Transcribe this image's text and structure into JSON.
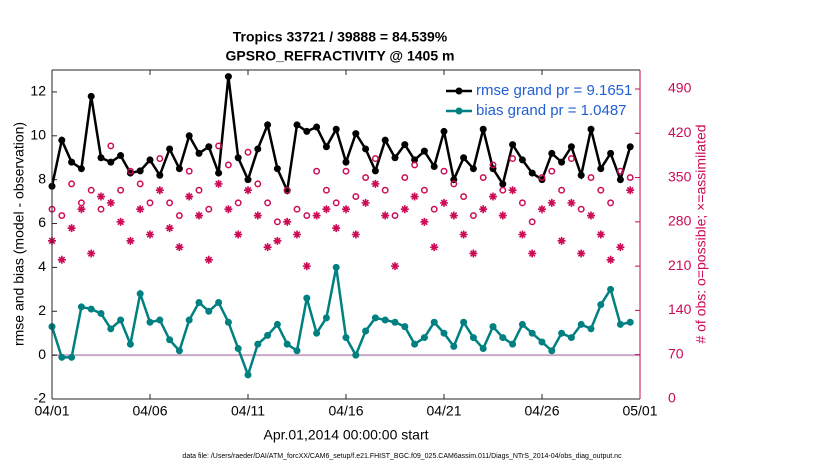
{
  "chart_data": {
    "type": "line",
    "title": "Tropics 33721 / 39888 = 84.539%",
    "subtitle": "GPSRO_REFRACTIVITY @ 1405 m",
    "x_label": "Apr.01,2014 00:00:00 start",
    "y_label": "rmse and bias (model - observation)",
    "y2_label": "# of obs: o=possible; ×=assimilated",
    "footnote": "data file: /Users/raeder/DAI/ATM_forcXX/CAM6_setup/f.e21.FHIST_BGC.f09_025.CAM6assim.011/Diags_NTrS_2014-04/obs_diag_output.nc",
    "x": [
      0,
      0.5,
      1,
      1.5,
      2,
      2.5,
      3,
      3.5,
      4,
      4.5,
      5,
      5.5,
      6,
      6.5,
      7,
      7.5,
      8,
      8.5,
      9,
      9.5,
      10,
      10.5,
      11,
      11.5,
      12,
      12.5,
      13,
      13.5,
      14,
      14.5,
      15,
      15.5,
      16,
      16.5,
      17,
      17.5,
      18,
      18.5,
      19,
      19.5,
      20,
      20.5,
      21,
      21.5,
      22,
      22.5,
      23,
      23.5,
      24,
      24.5,
      25,
      25.5,
      26,
      26.5,
      27,
      27.5,
      28,
      28.5,
      29,
      29.5
    ],
    "xlim": [
      0,
      30
    ],
    "xticks": [
      {
        "value": 0,
        "label": "04/01"
      },
      {
        "value": 5,
        "label": "04/06"
      },
      {
        "value": 10,
        "label": "04/11"
      },
      {
        "value": 15,
        "label": "04/16"
      },
      {
        "value": 20,
        "label": "04/21"
      },
      {
        "value": 25,
        "label": "04/26"
      },
      {
        "value": 30,
        "label": "05/01"
      }
    ],
    "ylim": [
      -2,
      13
    ],
    "yticks": [
      -2,
      0,
      2,
      4,
      6,
      8,
      10,
      12
    ],
    "y2lim": [
      0,
      520
    ],
    "y2ticks": [
      0,
      70,
      140,
      210,
      280,
      350,
      420,
      490
    ],
    "zero_line_color": "#c8a8c8",
    "y2_color": "#cc0a55",
    "series": [
      {
        "name": "rmse grand pr = 9.1651",
        "color": "#000000",
        "marker": "dot",
        "values": [
          7.7,
          9.8,
          8.8,
          8.5,
          11.8,
          9.0,
          8.8,
          9.1,
          8.3,
          8.4,
          8.9,
          8.2,
          9.4,
          8.5,
          10.0,
          9.2,
          9.5,
          8.3,
          12.7,
          9.0,
          8.0,
          9.4,
          10.5,
          8.5,
          7.5,
          10.5,
          10.2,
          10.4,
          9.5,
          10.3,
          8.8,
          10.1,
          9.4,
          8.4,
          9.8,
          9.0,
          9.6,
          8.9,
          9.3,
          8.6,
          10.2,
          8.0,
          9.0,
          8.5,
          10.3,
          8.5,
          7.8,
          9.6,
          8.9,
          8.3,
          8.0,
          9.2,
          8.8,
          9.5,
          8.2,
          10.3,
          8.5,
          9.2,
          8.0,
          9.5
        ]
      },
      {
        "name": "bias grand pr = 1.0487",
        "color": "#008080",
        "marker": "dot",
        "values": [
          1.3,
          -0.1,
          -0.1,
          2.2,
          2.1,
          1.9,
          1.2,
          1.6,
          0.5,
          2.8,
          1.5,
          1.6,
          0.7,
          0.2,
          1.6,
          2.4,
          2.0,
          2.4,
          1.5,
          0.3,
          -0.9,
          0.5,
          0.9,
          1.4,
          0.5,
          0.2,
          2.6,
          1.0,
          1.7,
          4.0,
          0.8,
          0.0,
          1.1,
          1.7,
          1.6,
          1.5,
          1.3,
          0.5,
          0.8,
          1.5,
          1.0,
          0.4,
          1.5,
          0.8,
          0.3,
          1.3,
          0.8,
          0.5,
          1.4,
          1.0,
          0.6,
          0.2,
          1.0,
          0.8,
          1.4,
          1.2,
          2.3,
          3.0,
          1.4,
          1.5
        ]
      },
      {
        "color": "#cc0a55",
        "marker": "circle",
        "axis": "y2",
        "values": [
          300,
          290,
          340,
          310,
          330,
          300,
          400,
          330,
          360,
          340,
          310,
          380,
          310,
          290,
          360,
          330,
          300,
          400,
          370,
          310,
          390,
          340,
          310,
          280,
          330,
          300,
          290,
          360,
          330,
          310,
          360,
          320,
          350,
          380,
          330,
          290,
          350,
          370,
          330,
          300,
          360,
          340,
          320,
          290,
          350,
          370,
          330,
          380,
          310,
          280,
          350,
          360,
          330,
          380,
          300,
          350,
          330,
          310,
          360,
          350
        ]
      },
      {
        "color": "#cc0a55",
        "marker": "star",
        "axis": "y2",
        "values": [
          250,
          220,
          270,
          300,
          230,
          320,
          310,
          280,
          250,
          300,
          260,
          330,
          270,
          240,
          320,
          290,
          220,
          340,
          300,
          260,
          330,
          290,
          240,
          250,
          280,
          260,
          210,
          290,
          300,
          270,
          300,
          260,
          310,
          340,
          290,
          210,
          300,
          320,
          280,
          240,
          310,
          290,
          260,
          230,
          300,
          320,
          290,
          330,
          260,
          230,
          300,
          310,
          250,
          310,
          230,
          290,
          260,
          220,
          240,
          330
        ]
      }
    ],
    "legend_position": "upper right",
    "legend_text_color": "#1f5fd6"
  }
}
